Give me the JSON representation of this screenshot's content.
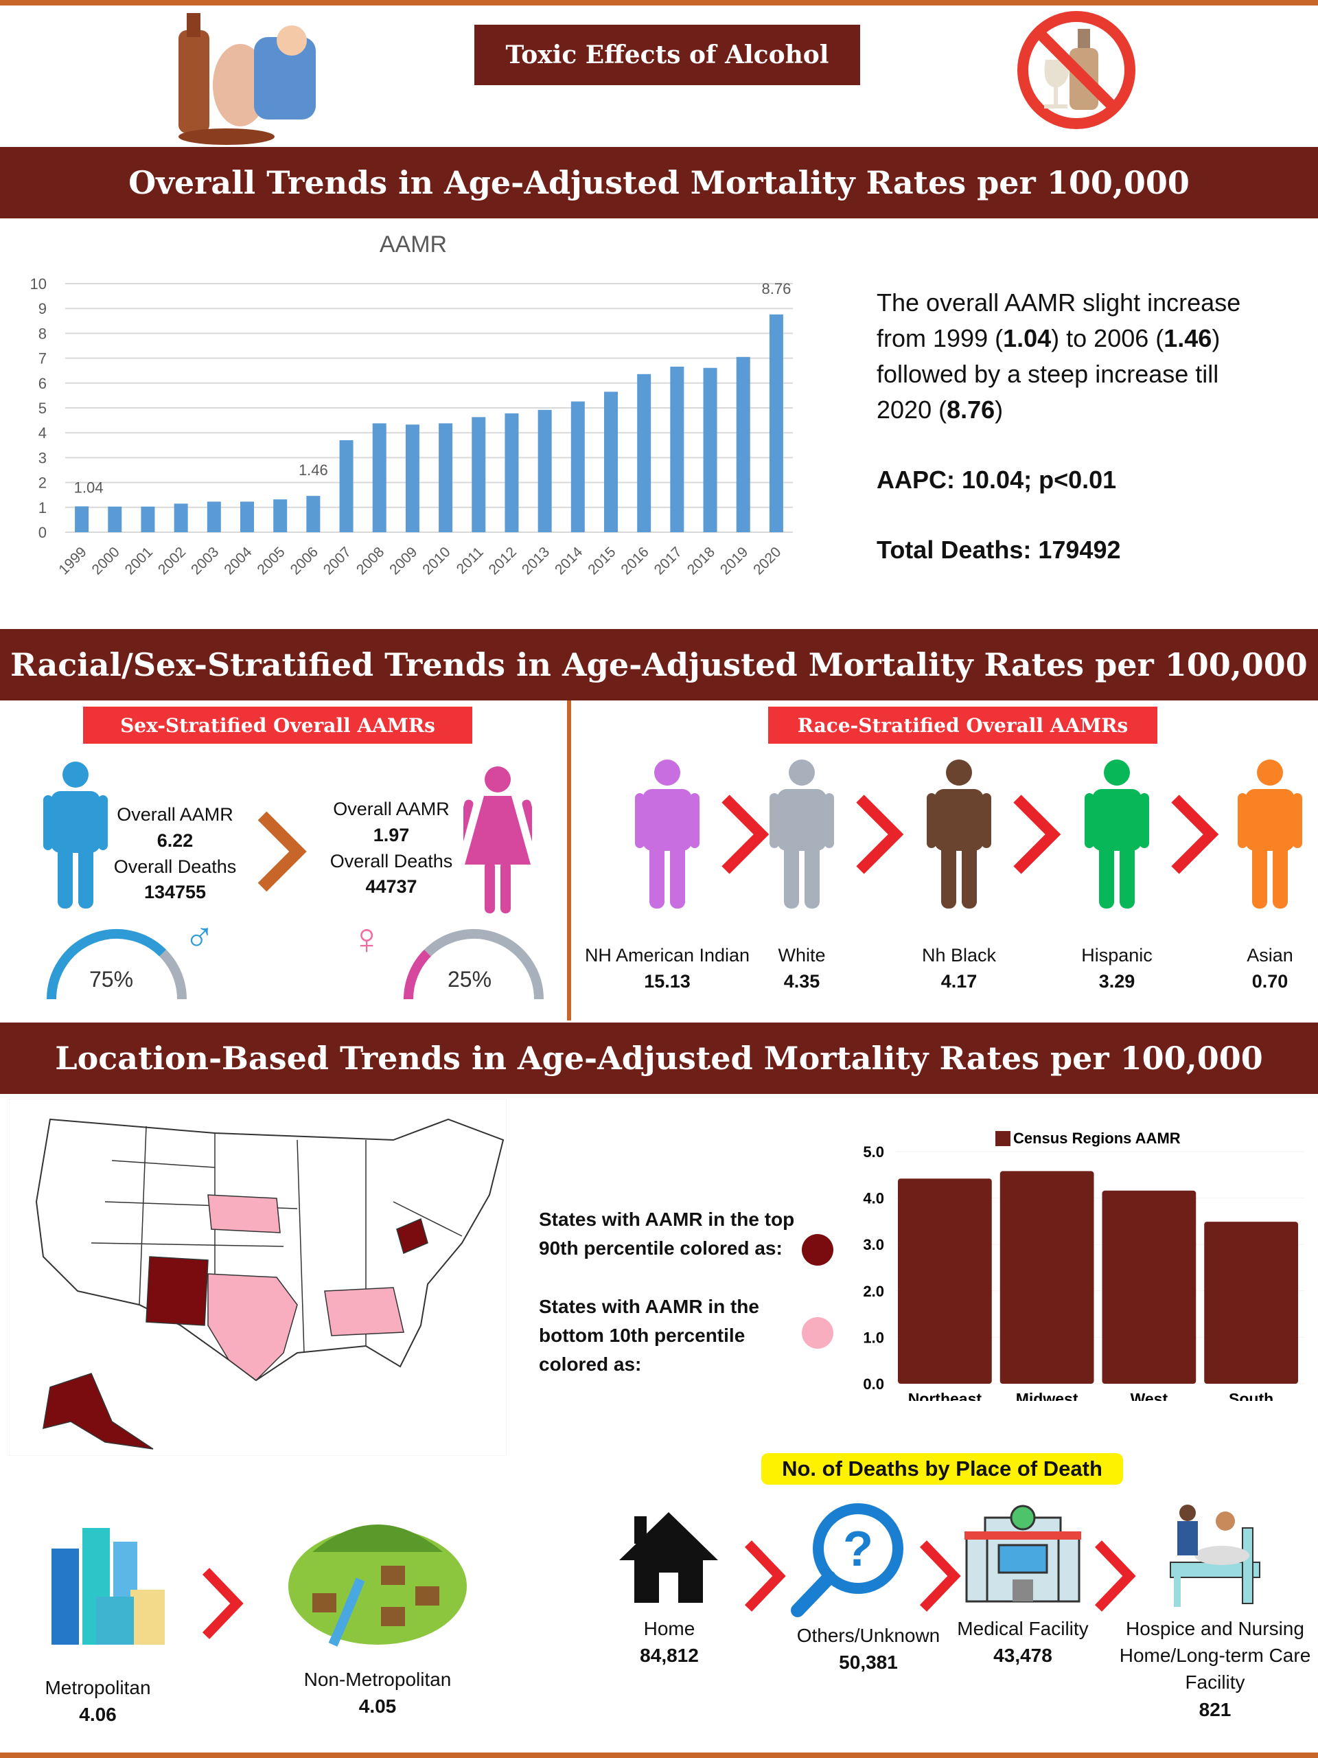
{
  "header": {
    "title": "Toxic Effects of Alcohol",
    "accent": "#6e1f17",
    "border": "#c8662a"
  },
  "section1": {
    "title": "Overall Trends in Age-Adjusted Mortality Rates per 100,000",
    "summary": {
      "l1": "The overall AAMR slight increase",
      "l2a": "from 1999 (",
      "v1": "1.04",
      "l2b": ") to 2006 (",
      "v2": "1.46",
      "l2c": ")",
      "l3": "followed by a steep increase till",
      "l4a": "2020 (",
      "v3": "8.76",
      "l4b": ")"
    },
    "aapc": "AAPC: 10.04; p<0.01",
    "deaths": "Total Deaths: 179492"
  },
  "section2": {
    "title": "Racial/Sex-Stratified Trends in Age-Adjusted Mortality Rates per 100,000",
    "sex_label": "Sex-Stratified Overall AAMRs",
    "race_label": "Race-Stratified Overall AAMRs",
    "male": {
      "aamr_label": "Overall AAMR",
      "aamr": "6.22",
      "deaths_label": "Overall Deaths",
      "deaths": "134755",
      "pct": "75%",
      "share": 75,
      "color": "#2e9ad6"
    },
    "female": {
      "aamr_label": "Overall AAMR",
      "aamr": "1.97",
      "deaths_label": "Overall Deaths",
      "deaths": "44737",
      "pct": "25%",
      "share": 25,
      "color": "#d6479e"
    },
    "races": [
      {
        "name": "NH American Indian",
        "value": "15.13",
        "color": "#c86ee0"
      },
      {
        "name": "White",
        "value": "4.35",
        "color": "#a8b0bb"
      },
      {
        "name": "Nh Black",
        "value": "4.17",
        "color": "#6b4430"
      },
      {
        "name": "Hispanic",
        "value": "3.29",
        "color": "#08b858"
      },
      {
        "name": "Asian",
        "value": "0.70",
        "color": "#f98324"
      }
    ]
  },
  "section3": {
    "title": "Location-Based Trends in Age-Adjusted Mortality Rates per 100,000",
    "legend_top": "States with AAMR in the top 90th percentile colored as:",
    "legend_top_color": "#7a0c10",
    "legend_bottom": "States with AAMR in the bottom 10th percentile colored as:",
    "legend_bottom_color": "#f9aec0",
    "urban": [
      {
        "name": "Metropolitan",
        "value": "4.06"
      },
      {
        "name": "Non-Metropolitan",
        "value": "4.05"
      }
    ],
    "place_title": "No. of Deaths by Place of Death",
    "places": [
      {
        "name": "Home",
        "value": "84,812"
      },
      {
        "name": "Others/Unknown",
        "value": "50,381"
      },
      {
        "name": "Medical Facility",
        "value": "43,478"
      },
      {
        "name": "Hospice and Nursing Home/Long-term Care Facility",
        "value": "821"
      }
    ]
  },
  "chart_data": [
    {
      "type": "bar",
      "title": "AAMR",
      "categories": [
        "1999",
        "2000",
        "2001",
        "2002",
        "2003",
        "2004",
        "2005",
        "2006",
        "2007",
        "2008",
        "2009",
        "2010",
        "2011",
        "2012",
        "2013",
        "2014",
        "2015",
        "2016",
        "2017",
        "2018",
        "2019",
        "2020"
      ],
      "values": [
        1.04,
        1.03,
        1.03,
        1.15,
        1.23,
        1.23,
        1.32,
        1.46,
        3.7,
        4.38,
        4.33,
        4.38,
        4.63,
        4.78,
        4.92,
        5.26,
        5.65,
        6.36,
        6.66,
        6.61,
        7.05,
        8.76
      ],
      "data_labels": {
        "1999": "1.04",
        "2006": "1.46",
        "2020": "8.76"
      },
      "ylim": [
        0,
        10
      ],
      "yticks": [
        0,
        1,
        2,
        3,
        4,
        5,
        6,
        7,
        8,
        9,
        10
      ],
      "grid": true,
      "color": "#5b9bd5"
    },
    {
      "type": "bar",
      "legend": "Census Regions AAMR",
      "categories": [
        "Northeast",
        "Midwest",
        "West",
        "South"
      ],
      "values": [
        4.42,
        4.58,
        4.16,
        3.49
      ],
      "ylim": [
        0,
        5
      ],
      "yticks": [
        "0.0",
        "1.0",
        "2.0",
        "3.0",
        "4.0",
        "5.0"
      ],
      "legend_position": "top",
      "color": "#6e1f17"
    }
  ]
}
